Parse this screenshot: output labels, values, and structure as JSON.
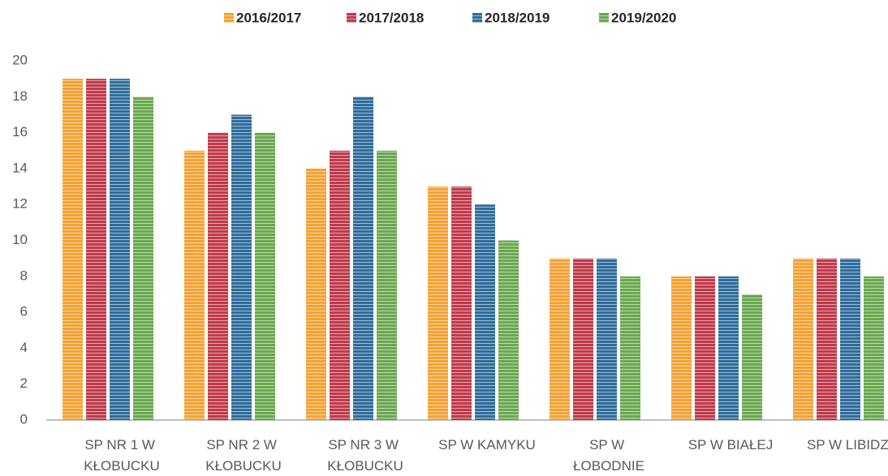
{
  "chart_data": {
    "type": "bar",
    "categories": [
      "SP NR 1 W KŁOBUCKU",
      "SP NR 2 W KŁOBUCKU",
      "SP NR 3 W KŁOBUCKU",
      "SP W KAMYKU",
      "SP W ŁOBODNIE",
      "SP W BIAŁEJ",
      "SP W LIBIDZY"
    ],
    "series": [
      {
        "name": "2016/2017",
        "color": "#f4a234",
        "values": [
          19,
          15,
          14,
          13,
          9,
          8,
          9
        ]
      },
      {
        "name": "2017/2018",
        "color": "#c03a4b",
        "values": [
          19,
          16,
          15,
          13,
          9,
          8,
          9
        ]
      },
      {
        "name": "2018/2019",
        "color": "#2f6d9c",
        "values": [
          19,
          17,
          18,
          12,
          9,
          8,
          9
        ]
      },
      {
        "name": "2019/2020",
        "color": "#6aa84f",
        "values": [
          18,
          16,
          15,
          10,
          8,
          7,
          8
        ]
      }
    ],
    "ylim": [
      0,
      20
    ],
    "yticks": [
      0,
      2,
      4,
      6,
      8,
      10,
      12,
      14,
      16,
      18,
      20
    ],
    "legend": "top"
  }
}
